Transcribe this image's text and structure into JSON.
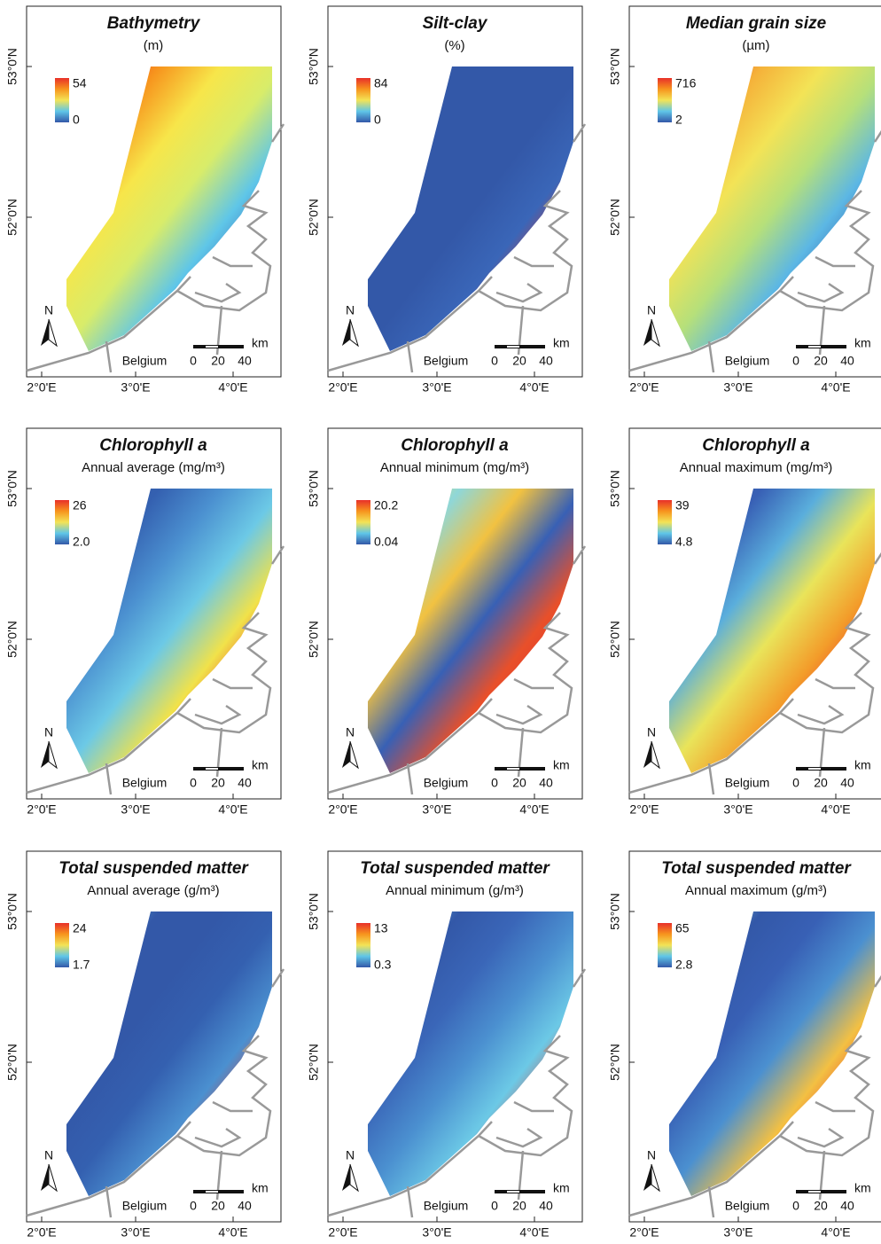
{
  "panels": [
    {
      "title": "Bathymetry",
      "subtitle": "(m)",
      "legend_max": "54",
      "legend_min": "0"
    },
    {
      "title": "Silt-clay",
      "subtitle": "(%)",
      "legend_max": "84",
      "legend_min": "0"
    },
    {
      "title": "Median grain size",
      "subtitle": "(µm)",
      "legend_max": "716",
      "legend_min": "2"
    },
    {
      "title": "Chlorophyll a",
      "subtitle": "Annual average (mg/m³)",
      "legend_max": "26",
      "legend_min": "2.0"
    },
    {
      "title": "Chlorophyll a",
      "subtitle": "Annual minimum (mg/m³)",
      "legend_max": "20.2",
      "legend_min": "0.04"
    },
    {
      "title": "Chlorophyll a",
      "subtitle": "Annual maximum (mg/m³)",
      "legend_max": "39",
      "legend_min": "4.8"
    },
    {
      "title": "Total suspended matter",
      "subtitle": "Annual average (g/m³)",
      "legend_max": "24",
      "legend_min": "1.7"
    },
    {
      "title": "Total suspended matter",
      "subtitle": "Annual minimum (g/m³)",
      "legend_max": "13",
      "legend_min": "0.3"
    },
    {
      "title": "Total suspended matter",
      "subtitle": "Annual maximum (g/m³)",
      "legend_max": "65",
      "legend_min": "2.8"
    }
  ],
  "map": {
    "lat_labels": [
      "53°0'N",
      "52°0'N"
    ],
    "lon_labels": [
      "2°0'E",
      "3°0'E",
      "4°0'E"
    ],
    "country": "Belgium",
    "scale_unit": "km",
    "scale_labels": [
      "0",
      "20",
      "40"
    ],
    "north": "N"
  }
}
